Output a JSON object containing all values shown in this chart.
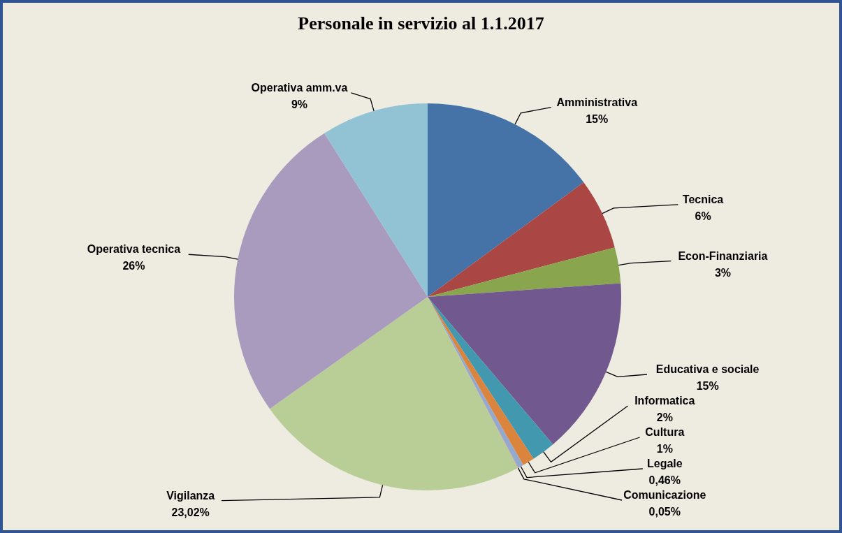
{
  "chart_data": {
    "type": "pie",
    "title": "Personale in servizio al 1.1.2017",
    "categories": [
      "Amministrativa",
      "Tecnica",
      "Econ-Finanziaria",
      "Educativa e sociale",
      "Informatica",
      "Cultura",
      "Legale",
      "Comunicazione",
      "Vigilanza",
      "Operativa tecnica",
      "Operativa amm.va"
    ],
    "values": [
      15,
      6,
      3,
      15,
      2,
      1,
      0.46,
      0.05,
      23.02,
      26,
      9
    ],
    "value_labels": [
      "15%",
      "6%",
      "3%",
      "15%",
      "2%",
      "1%",
      "0,46%",
      "0,05%",
      "23,02%",
      "26%",
      "9%"
    ],
    "colors": [
      "#4572a7",
      "#aa4643",
      "#89a54e",
      "#71588f",
      "#4198af",
      "#db843d",
      "#93a9cf",
      "#d19392",
      "#b9cd96",
      "#a99bbd",
      "#92c3d5"
    ]
  }
}
